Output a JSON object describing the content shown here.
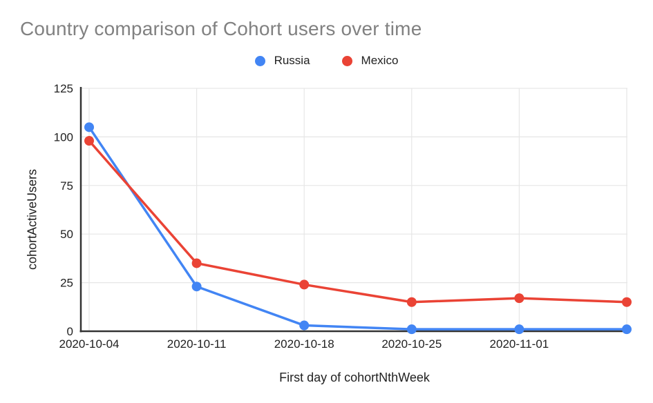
{
  "page": {
    "background_color": "#ffffff"
  },
  "chart_data": {
    "type": "line",
    "title": "Country comparison of Cohort users over time",
    "xlabel": "First day of cohortNthWeek",
    "ylabel": "cohortActiveUsers",
    "categories": [
      "2020-10-04",
      "2020-10-11",
      "2020-10-18",
      "2020-10-25",
      "2020-11-01",
      ""
    ],
    "series": [
      {
        "name": "Russia",
        "color": "#4285F4",
        "values": [
          105,
          23,
          3,
          1,
          1,
          1
        ]
      },
      {
        "name": "Mexico",
        "color": "#EA4335",
        "values": [
          98,
          35,
          24,
          15,
          17,
          15
        ]
      }
    ],
    "ylim": [
      0,
      125
    ],
    "y_ticks": [
      0,
      25,
      50,
      75,
      100,
      125
    ],
    "grid": true,
    "legend_position": "top",
    "colors": {
      "title_text": "#818181",
      "axis_text": "#212121",
      "gridline": "#e6e6e6",
      "axis_line": "#333333"
    }
  }
}
